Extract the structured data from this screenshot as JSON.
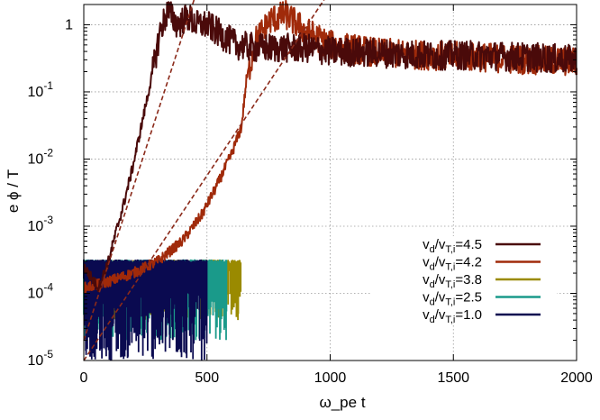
{
  "chart_data": {
    "type": "line",
    "xlabel": "ω_pe t",
    "ylabel": "e ϕ / T",
    "x_ticks": [
      0,
      500,
      1000,
      1500,
      2000
    ],
    "y_ticks": [
      {
        "value": 1e-05,
        "base": "10",
        "exp": "-5"
      },
      {
        "value": 0.0001,
        "base": "10",
        "exp": "-4"
      },
      {
        "value": 0.001,
        "base": "10",
        "exp": "-3"
      },
      {
        "value": 0.01,
        "base": "10",
        "exp": "-2"
      },
      {
        "value": 0.1,
        "base": "10",
        "exp": "-1"
      },
      {
        "value": 1,
        "base": "1",
        "exp": ""
      }
    ],
    "xlim": [
      0,
      2000
    ],
    "ylim": [
      1e-05,
      2
    ],
    "y_scale": "log",
    "grid": true,
    "legend_position": "bottom-right",
    "series": [
      {
        "name": "4.5",
        "color": "#4a0a0a",
        "x": [
          0,
          60,
          100,
          130,
          160,
          200,
          240,
          280,
          310,
          340,
          380,
          420,
          460,
          500,
          560,
          620,
          700,
          800,
          900,
          1000,
          1200,
          1400,
          1600,
          1800,
          2000
        ],
        "y": [
          0.00025,
          0.00012,
          0.0003,
          0.0008,
          0.002,
          0.008,
          0.04,
          0.2,
          0.8,
          1.6,
          1.0,
          1.3,
          1.0,
          1.0,
          0.7,
          0.5,
          0.45,
          0.45,
          0.45,
          0.4,
          0.38,
          0.35,
          0.35,
          0.33,
          0.3
        ]
      },
      {
        "name": "4.2",
        "color": "#a02a0a",
        "x": [
          0,
          100,
          200,
          300,
          400,
          480,
          540,
          600,
          640,
          660,
          700,
          760,
          820,
          900,
          1000,
          1200,
          1400,
          1600,
          1800,
          2000
        ],
        "y": [
          0.00012,
          0.00015,
          0.0002,
          0.0003,
          0.0006,
          0.0015,
          0.004,
          0.012,
          0.03,
          0.15,
          0.6,
          1.2,
          1.4,
          0.8,
          0.5,
          0.38,
          0.35,
          0.33,
          0.3,
          0.28
        ]
      },
      {
        "name": "3.8",
        "color": "#9a8a00",
        "x": [
          0,
          640
        ],
        "y_range": [
          4e-05,
          0.00032
        ]
      },
      {
        "name": "2.5",
        "color": "#1a9a8a",
        "x": [
          0,
          580
        ],
        "y_range": [
          2e-05,
          0.00032
        ]
      },
      {
        "name": "1.0",
        "color": "#0a0a50",
        "x": [
          0,
          500
        ],
        "y_range": [
          1e-05,
          0.00032
        ]
      }
    ],
    "fit_lines": [
      {
        "series": "4.5",
        "color": "#8b2a1a",
        "x": [
          0,
          450
        ],
        "y": [
          2e-05,
          2.5
        ]
      },
      {
        "series": "4.2",
        "color": "#8b2a1a",
        "x": [
          0,
          980
        ],
        "y": [
          1e-05,
          2.5
        ]
      }
    ]
  }
}
